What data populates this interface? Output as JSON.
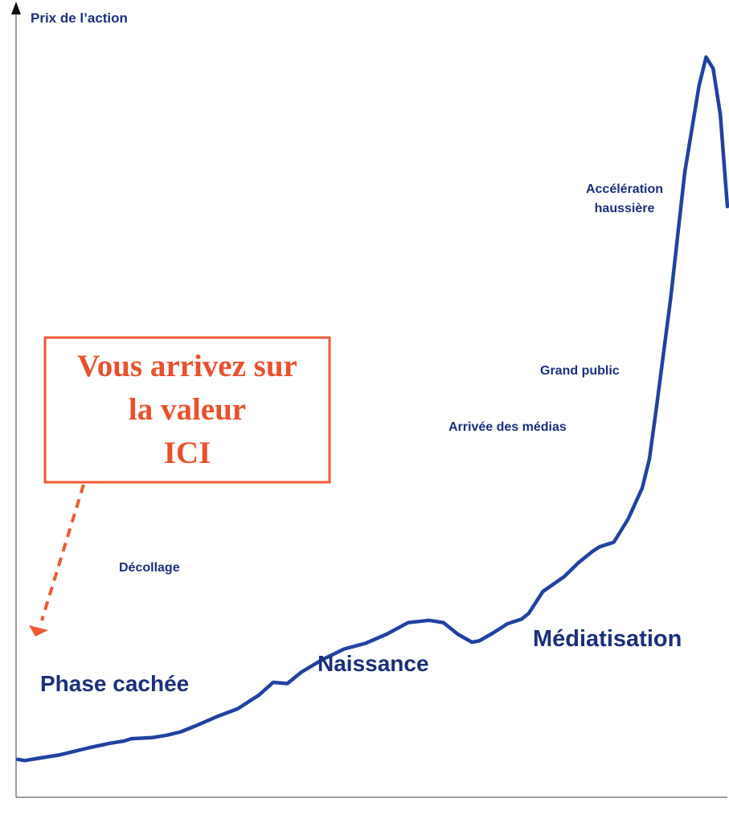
{
  "chart_data": {
    "type": "line",
    "ylabel": "Prix de l’action",
    "xlabel": "",
    "grid": false,
    "legend": "none",
    "phases": [
      "Phase cachée",
      "Naissance",
      "Médiatisation"
    ],
    "annotations": {
      "decollage": "Décollage",
      "arrivee_medias": "Arrivée des médias",
      "grand_public": "Grand public",
      "acceleration_1": "Accélération",
      "acceleration_2": "haussière"
    },
    "callout": {
      "line1": "Vous arrivez sur",
      "line2": "la valeur",
      "line3": "ICI"
    },
    "colors": {
      "curve": "#2242a0",
      "text": "#1b2f7d",
      "callout": "#e8512e",
      "axis": "#7f7f7f"
    },
    "series": [
      {
        "values": [
          [
            0,
            1.9
          ],
          [
            1,
            1.8
          ],
          [
            3,
            2.0
          ],
          [
            6,
            2.3
          ],
          [
            8,
            2.6
          ],
          [
            10,
            2.9
          ],
          [
            13,
            3.3
          ],
          [
            15,
            3.5
          ],
          [
            16,
            3.7
          ],
          [
            19,
            3.8
          ],
          [
            21,
            4.0
          ],
          [
            23,
            4.3
          ],
          [
            25,
            4.8
          ],
          [
            28,
            5.6
          ],
          [
            31,
            6.3
          ],
          [
            34,
            7.5
          ],
          [
            36,
            8.6
          ],
          [
            38,
            8.5
          ],
          [
            40,
            9.5
          ],
          [
            43,
            10.6
          ],
          [
            46,
            11.5
          ],
          [
            49,
            12.0
          ],
          [
            52,
            12.8
          ],
          [
            55,
            13.8
          ],
          [
            58,
            14.0
          ],
          [
            60,
            13.8
          ],
          [
            62,
            12.8
          ],
          [
            64,
            12.1
          ],
          [
            65,
            12.2
          ],
          [
            67,
            12.9
          ],
          [
            69,
            13.7
          ],
          [
            71,
            14.1
          ],
          [
            72,
            14.6
          ],
          [
            74,
            16.5
          ],
          [
            77,
            17.8
          ],
          [
            79,
            19.0
          ],
          [
            81,
            20.0
          ],
          [
            82,
            20.4
          ],
          [
            84,
            20.8
          ],
          [
            86,
            22.8
          ],
          [
            88,
            25.5
          ],
          [
            89,
            28.0
          ],
          [
            90,
            32.5
          ],
          [
            92,
            42.0
          ],
          [
            94,
            53.0
          ],
          [
            96,
            60.5
          ],
          [
            97,
            63.0
          ],
          [
            98,
            62.0
          ],
          [
            99,
            58.0
          ],
          [
            100,
            50.0
          ]
        ]
      }
    ]
  }
}
